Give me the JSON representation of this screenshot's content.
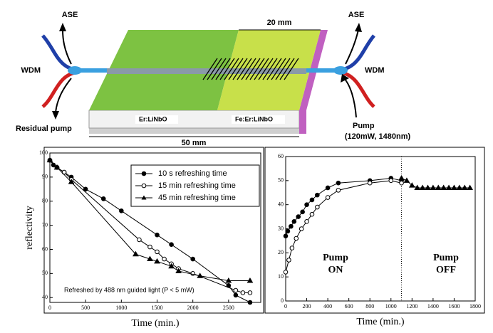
{
  "diagram": {
    "left_top": "ASE",
    "left_wdm": "WDM",
    "left_bottom": "Residual pump",
    "region1": "Er:LiNbO",
    "region2": "Fe:Er:LiNbO",
    "length_short": "20 mm",
    "length_long": "50 mm",
    "right_top": "ASE",
    "right_wdm": "WDM",
    "right_bottom": "Pump",
    "right_bottom_detail": "(120mW, 1480nm)"
  },
  "chart_data": [
    {
      "type": "line",
      "ylabel": "reflectivity",
      "xlabel": "Time (min.)",
      "annotation": "Refreshed by 488 nm guided light (P < 5 mW)",
      "xlim": [
        0,
        2950
      ],
      "xticks": [
        0,
        500,
        1000,
        1500,
        2000,
        2500
      ],
      "ylim": [
        38,
        100
      ],
      "yticks": [
        40,
        50,
        60,
        70,
        80,
        90,
        100
      ],
      "legend": "upper right",
      "series": [
        {
          "name": "10 s refreshing time",
          "color": "#000",
          "marker": "filled-circle",
          "x": [
            0,
            50,
            100,
            200,
            300,
            500,
            750,
            1000,
            1500,
            1700,
            2000,
            2500,
            2600,
            2800
          ],
          "values": [
            97,
            95,
            94,
            92,
            90,
            85,
            81,
            76,
            66,
            62,
            56,
            45,
            41,
            38
          ]
        },
        {
          "name": "15 min refreshing time",
          "color": "#000",
          "marker": "open-circle",
          "x": [
            0,
            100,
            200,
            300,
            1250,
            1400,
            1500,
            1600,
            1700,
            1800,
            2000,
            2600,
            2700,
            2800
          ],
          "values": [
            97,
            94,
            92,
            89,
            64,
            61,
            59,
            56,
            54,
            52,
            50,
            43,
            42,
            42
          ]
        },
        {
          "name": "45 min refreshing time",
          "color": "#000",
          "marker": "triangle",
          "x": [
            0,
            100,
            300,
            1200,
            1400,
            1500,
            1700,
            1800,
            2100,
            2500,
            2800
          ],
          "values": [
            97,
            94,
            88,
            58,
            56,
            55,
            53,
            51,
            49,
            47,
            47
          ]
        }
      ]
    },
    {
      "type": "line",
      "xlabel": "Time (min.)",
      "annotations": [
        [
          "Pump",
          "ON"
        ],
        [
          "Pump",
          "OFF"
        ]
      ],
      "divider_x": 1100,
      "xlim": [
        0,
        1800
      ],
      "xticks": [
        0,
        200,
        400,
        600,
        800,
        1000,
        1200,
        1400,
        1600,
        1800
      ],
      "ylim": [
        0,
        60
      ],
      "yticks": [
        0,
        10,
        20,
        30,
        40,
        50,
        60
      ],
      "series": [
        {
          "color": "#000",
          "marker": "filled-circle",
          "x": [
            0,
            20,
            50,
            80,
            120,
            160,
            200,
            250,
            300,
            400,
            500,
            800,
            1000,
            1100
          ],
          "values": [
            27,
            29,
            31,
            33,
            35,
            37,
            40,
            42,
            44,
            47,
            49,
            50,
            51,
            50
          ]
        },
        {
          "color": "#000",
          "marker": "open-circle",
          "x": [
            0,
            30,
            60,
            100,
            150,
            200,
            250,
            300,
            400,
            500,
            800,
            1000,
            1100
          ],
          "values": [
            12,
            17,
            22,
            26,
            30,
            33,
            36,
            39,
            43,
            46,
            49,
            50,
            49
          ]
        },
        {
          "color": "#000",
          "marker": "triangle",
          "x": [
            1100,
            1150,
            1200,
            1250,
            1300,
            1350,
            1400,
            1450,
            1500,
            1550,
            1600,
            1650,
            1700,
            1750
          ],
          "values": [
            51,
            50,
            48,
            47,
            47,
            47,
            47,
            47,
            47,
            47,
            47,
            47,
            47,
            47
          ]
        }
      ]
    }
  ]
}
